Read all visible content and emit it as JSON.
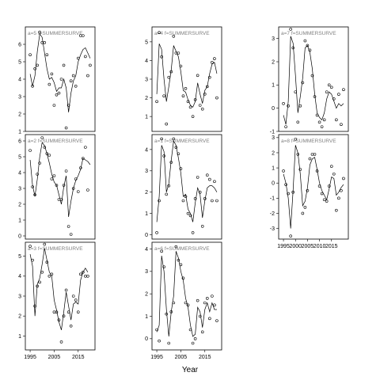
{
  "figure": {
    "xlabel": "Year"
  },
  "chart_data": [
    {
      "type": "scatter",
      "title": "a=5   f=SUMMERSURVE",
      "xlim": [
        1993,
        2022
      ],
      "ylim": [
        1,
        7
      ],
      "yticks": [
        1,
        2,
        3,
        4,
        5,
        6
      ],
      "xticks": [],
      "series": [
        {
          "type": "points",
          "x": [
            1995,
            1996,
            1997,
            1998,
            1999,
            2000,
            2001,
            2002,
            2003,
            2004,
            2005,
            2006,
            2007,
            2008,
            2009,
            2010,
            2011,
            2012,
            2013,
            2014,
            2015,
            2016,
            2017,
            2018,
            2019,
            2020
          ],
          "y": [
            5.4,
            3.6,
            4.6,
            4.8,
            6.7,
            6.1,
            6.1,
            5.4,
            3.7,
            4.3,
            2.5,
            3.1,
            3.2,
            4.0,
            4.8,
            1.2,
            2.5,
            3.9,
            4.2,
            3.6,
            5.2,
            6.5,
            6.5,
            5.3,
            4.2,
            4.8
          ]
        },
        {
          "type": "line",
          "x": [
            1995,
            1996,
            1997,
            1998,
            1999,
            2000,
            2001,
            2002,
            2003,
            2004,
            2005,
            2006,
            2007,
            2008,
            2009,
            2010,
            2011,
            2012,
            2013,
            2014,
            2015,
            2016,
            2017,
            2018,
            2019,
            2020
          ],
          "y": [
            4.3,
            3.6,
            4.2,
            5.6,
            6.6,
            6.4,
            5.5,
            4.6,
            4.0,
            4.1,
            3.8,
            3.3,
            3.5,
            3.5,
            4.0,
            3.5,
            2.1,
            3.2,
            3.9,
            4.2,
            5.0,
            5.4,
            5.7,
            5.8,
            5.5,
            5.2
          ]
        }
      ]
    },
    {
      "type": "scatter",
      "title": "a=4   f=SUMMERSURVE",
      "xlim": [
        1993,
        2022
      ],
      "ylim": [
        0.2,
        5.8
      ],
      "yticks": [
        1,
        2,
        3,
        4,
        5
      ],
      "xticks": [],
      "series": [
        {
          "type": "points",
          "x": [
            1995,
            1996,
            1997,
            1998,
            1999,
            2000,
            2001,
            2002,
            2003,
            2004,
            2005,
            2006,
            2007,
            2008,
            2009,
            2010,
            2011,
            2012,
            2013,
            2014,
            2015,
            2016,
            2017,
            2018,
            2019,
            2020
          ],
          "y": [
            1.8,
            5.5,
            4.2,
            2.1,
            0.6,
            3.1,
            3.4,
            5.3,
            4.4,
            4.4,
            3.7,
            2.1,
            2.5,
            1.8,
            1.5,
            1.0,
            1.9,
            3.2,
            1.6,
            1.4,
            2.2,
            2.6,
            3.1,
            3.9,
            4.1,
            2.0
          ]
        },
        {
          "type": "line",
          "x": [
            1995,
            1996,
            1997,
            1998,
            1999,
            2000,
            2001,
            2002,
            2003,
            2004,
            2005,
            2006,
            2007,
            2008,
            2009,
            2010,
            2011,
            2012,
            2013,
            2014,
            2015,
            2016,
            2017,
            2018,
            2019,
            2020
          ],
          "y": [
            2.2,
            4.9,
            4.6,
            3.0,
            1.8,
            2.6,
            3.5,
            4.8,
            4.5,
            4.2,
            3.4,
            2.4,
            2.3,
            1.9,
            1.6,
            1.5,
            1.8,
            2.8,
            2.2,
            1.7,
            2.4,
            2.6,
            3.3,
            3.8,
            3.9,
            3.3
          ]
        }
      ]
    },
    {
      "type": "scatter",
      "title": "a=7   f=SUMMERSURVE",
      "xlim": [
        1993,
        2022
      ],
      "ylim": [
        -1,
        3.5
      ],
      "yticks": [
        -1,
        0,
        1,
        2,
        3
      ],
      "xticks": [],
      "series": [
        {
          "type": "points",
          "x": [
            1995,
            1996,
            1997,
            1998,
            1999,
            2000,
            2001,
            2002,
            2003,
            2004,
            2005,
            2006,
            2007,
            2008,
            2009,
            2010,
            2011,
            2012,
            2013,
            2014,
            2015,
            2016,
            2017,
            2018,
            2019,
            2020
          ],
          "y": [
            0.2,
            -0.8,
            0.1,
            3.4,
            2.6,
            0.7,
            -0.6,
            0.1,
            1.1,
            2.9,
            2.7,
            2.5,
            1.4,
            0.5,
            -0.3,
            -0.6,
            -0.8,
            -0.5,
            0.7,
            1.0,
            0.9,
            0.4,
            -0.5,
            0.6,
            -0.7,
            0.8
          ]
        },
        {
          "type": "line",
          "x": [
            1995,
            1996,
            1997,
            1998,
            1999,
            2000,
            2001,
            2002,
            2003,
            2004,
            2005,
            2006,
            2007,
            2008,
            2009,
            2010,
            2011,
            2012,
            2013,
            2014,
            2015,
            2016,
            2017,
            2018,
            2019,
            2020
          ],
          "y": [
            -0.3,
            -0.7,
            0.3,
            3.1,
            2.8,
            1.4,
            -0.2,
            0.5,
            1.3,
            2.6,
            2.7,
            2.4,
            1.7,
            0.6,
            -0.2,
            -0.4,
            -0.5,
            -0.2,
            0.4,
            0.7,
            0.6,
            0.3,
            0.0,
            0.2,
            0.1,
            0.2
          ]
        }
      ]
    },
    {
      "type": "scatter",
      "title": "a=2   f=SUMMERSURVE",
      "xlim": [
        1993,
        2022
      ],
      "ylim": [
        -0.2,
        6.4
      ],
      "yticks": [
        0,
        1,
        2,
        3,
        4,
        5,
        6
      ],
      "xticks": [],
      "series": [
        {
          "type": "points",
          "x": [
            1995,
            1996,
            1997,
            1998,
            1999,
            2000,
            2001,
            2002,
            2003,
            2004,
            2005,
            2006,
            2007,
            2008,
            2009,
            2010,
            2011,
            2012,
            2013,
            2014,
            2015,
            2016,
            2017,
            2018,
            2019
          ],
          "y": [
            5.4,
            3.1,
            2.6,
            3.9,
            4.6,
            6.2,
            5.6,
            5.2,
            5.1,
            3.6,
            3.8,
            3.2,
            2.3,
            2.3,
            3.2,
            4.1,
            0.6,
            0.1,
            3.0,
            3.6,
            2.8,
            4.3,
            4.9,
            5.6,
            2.9
          ]
        },
        {
          "type": "line",
          "x": [
            1995,
            1996,
            1997,
            1998,
            1999,
            2000,
            2001,
            2002,
            2003,
            2004,
            2005,
            2006,
            2007,
            2008,
            2009,
            2010,
            2011,
            2012,
            2013,
            2014,
            2015,
            2016,
            2017,
            2018,
            2019,
            2020
          ],
          "y": [
            4.8,
            3.2,
            2.5,
            3.6,
            5.0,
            5.9,
            5.7,
            5.2,
            4.6,
            3.9,
            3.4,
            3.2,
            2.6,
            2.0,
            3.1,
            3.8,
            1.2,
            2.2,
            3.0,
            3.5,
            3.8,
            4.2,
            4.9,
            4.8,
            4.7,
            4.5
          ]
        }
      ]
    },
    {
      "type": "scatter",
      "title": "a=1   f=SUMMERSURVE",
      "xlim": [
        1993,
        2022
      ],
      "ylim": [
        -0.2,
        4.7
      ],
      "yticks": [
        0,
        1,
        2,
        3,
        4
      ],
      "xticks": [],
      "series": [
        {
          "type": "points",
          "x": [
            1995,
            1996,
            1997,
            1998,
            1999,
            2000,
            2001,
            2002,
            2003,
            2004,
            2005,
            2006,
            2007,
            2008,
            2009,
            2010,
            2011,
            2012,
            2013,
            2014,
            2015,
            2016,
            2017,
            2018,
            2019,
            2020
          ],
          "y": [
            0.1,
            1.6,
            4.5,
            3.7,
            1.9,
            2.3,
            3.4,
            4.5,
            4.1,
            3.8,
            3.1,
            1.6,
            1.8,
            1.0,
            0.9,
            0.1,
            1.7,
            2.7,
            2.0,
            0.4,
            1.7,
            2.8,
            2.6,
            1.6,
            2.5,
            1.6
          ]
        },
        {
          "type": "line",
          "x": [
            1995,
            1996,
            1997,
            1998,
            1999,
            2000,
            2001,
            2002,
            2003,
            2004,
            2005,
            2006,
            2007,
            2008,
            2009,
            2010,
            2011,
            2012,
            2013,
            2014,
            2015,
            2016,
            2017,
            2018,
            2019,
            2020
          ],
          "y": [
            0.6,
            1.8,
            4.2,
            3.9,
            2.0,
            2.4,
            3.5,
            4.4,
            4.2,
            3.6,
            2.9,
            1.8,
            1.9,
            1.2,
            1.0,
            0.6,
            1.5,
            2.2,
            1.9,
            0.8,
            1.6,
            2.2,
            2.3,
            2.3,
            2.2,
            2.0
          ]
        }
      ]
    },
    {
      "type": "scatter",
      "title": "a=8   f=SUMMERSURVE",
      "xlim": [
        1993,
        2022
      ],
      "ylim": [
        -3.7,
        3.2
      ],
      "yticks": [
        -3,
        -2,
        -1,
        0,
        1,
        2,
        3
      ],
      "xticks": [
        1995,
        2000,
        2005,
        2010,
        2015
      ],
      "series": [
        {
          "type": "points",
          "x": [
            1995,
            1996,
            1997,
            1998,
            1999,
            2000,
            2001,
            2002,
            2003,
            2004,
            2005,
            2006,
            2007,
            2008,
            2009,
            2010,
            2011,
            2012,
            2013,
            2014,
            2015,
            2016,
            2017,
            2018,
            2019,
            2020
          ],
          "y": [
            0.8,
            -0.1,
            -0.7,
            -3.5,
            -0.6,
            2.9,
            1.9,
            0.9,
            -2.0,
            -1.6,
            -0.5,
            1.6,
            1.9,
            1.9,
            0.8,
            -0.2,
            -0.7,
            -1.1,
            -1.2,
            -0.2,
            1.1,
            0.6,
            -1.8,
            -1.0,
            -0.5,
            0.3
          ]
        },
        {
          "type": "line",
          "x": [
            1995,
            1996,
            1997,
            1998,
            1999,
            2000,
            2001,
            2002,
            2003,
            2004,
            2005,
            2006,
            2007,
            2008,
            2009,
            2010,
            2011,
            2012,
            2013,
            2014,
            2015,
            2016,
            2017,
            2018,
            2019,
            2020
          ],
          "y": [
            0.6,
            0.0,
            -1.0,
            -3.0,
            -0.5,
            2.5,
            2.0,
            0.6,
            -1.5,
            -1.2,
            -0.3,
            1.2,
            1.6,
            1.7,
            0.9,
            0.0,
            -0.5,
            -0.8,
            -1.1,
            -0.4,
            0.4,
            0.3,
            -0.8,
            -0.6,
            -0.3,
            -0.1
          ]
        }
      ]
    },
    {
      "type": "scatter",
      "title": "a=3   f=SUMMERSURVE",
      "xlim": [
        1993,
        2022
      ],
      "ylim": [
        0.3,
        5.7
      ],
      "yticks": [
        1,
        2,
        3,
        4,
        5
      ],
      "xticks": [
        1995,
        2005,
        2015
      ],
      "series": [
        {
          "type": "points",
          "x": [
            1995,
            1996,
            1997,
            1998,
            1999,
            2000,
            2001,
            2002,
            2003,
            2004,
            2005,
            2006,
            2007,
            2008,
            2009,
            2010,
            2011,
            2012,
            2013,
            2014,
            2015,
            2016,
            2017,
            2018,
            2019
          ],
          "y": [
            5.5,
            4.8,
            2.5,
            3.5,
            3.7,
            4.2,
            5.6,
            4.7,
            4.0,
            4.1,
            2.2,
            2.2,
            1.8,
            0.7,
            2.0,
            3.3,
            2.2,
            1.5,
            3.0,
            2.8,
            2.2,
            4.1,
            4.2,
            4.0,
            4.0
          ]
        },
        {
          "type": "line",
          "x": [
            1995,
            1996,
            1997,
            1998,
            1999,
            2000,
            2001,
            2002,
            2003,
            2004,
            2005,
            2006,
            2007,
            2008,
            2009,
            2010,
            2011,
            2012,
            2013,
            2014,
            2015,
            2016,
            2017,
            2018,
            2019
          ],
          "y": [
            5.1,
            4.5,
            2.0,
            3.6,
            3.9,
            4.6,
            5.4,
            4.8,
            4.2,
            4.0,
            2.8,
            2.3,
            1.7,
            1.3,
            2.2,
            3.2,
            2.5,
            1.8,
            2.6,
            2.7,
            2.6,
            3.8,
            4.2,
            4.4,
            4.2
          ]
        }
      ]
    },
    {
      "type": "scatter",
      "title": "a=6   f=SUMMERSURVE",
      "xlim": [
        1993,
        2022
      ],
      "ylim": [
        -0.5,
        4.3
      ],
      "yticks": [
        0,
        1,
        2,
        3,
        4
      ],
      "xticks": [
        1995,
        2005,
        2015
      ],
      "series": [
        {
          "type": "points",
          "x": [
            1995,
            1996,
            1997,
            1998,
            1999,
            2000,
            2001,
            2002,
            2003,
            2004,
            2005,
            2006,
            2007,
            2008,
            2009,
            2010,
            2011,
            2012,
            2013,
            2014,
            2015,
            2016,
            2017,
            2018,
            2019,
            2020
          ],
          "y": [
            0.4,
            -0.1,
            3.9,
            3.2,
            1.1,
            -0.2,
            1.2,
            1.6,
            4.1,
            3.5,
            3.3,
            2.7,
            1.6,
            1.5,
            0.4,
            -0.2,
            0.0,
            1.7,
            1.0,
            0.3,
            1.6,
            1.8,
            0.9,
            1.9,
            1.5,
            0.8
          ]
        },
        {
          "type": "line",
          "x": [
            1995,
            1996,
            1997,
            1998,
            1999,
            2000,
            2001,
            2002,
            2003,
            2004,
            2005,
            2006,
            2007,
            2008,
            2009,
            2010,
            2011,
            2012,
            2013,
            2014,
            2015,
            2016,
            2017,
            2018,
            2019,
            2020
          ],
          "y": [
            0.3,
            0.6,
            3.7,
            3.0,
            1.3,
            0.1,
            1.2,
            1.9,
            3.9,
            3.6,
            3.0,
            2.6,
            1.8,
            1.4,
            0.6,
            0.1,
            0.2,
            1.4,
            1.2,
            0.5,
            1.3,
            1.6,
            1.2,
            1.6,
            1.3,
            1.3
          ]
        }
      ]
    }
  ]
}
